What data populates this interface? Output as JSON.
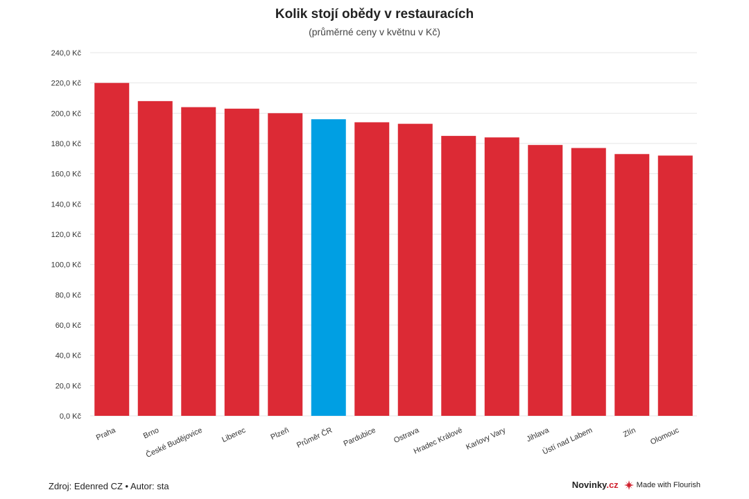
{
  "chart_data": {
    "type": "bar",
    "title": "Kolik stojí obědy v restauracích",
    "subtitle": "(průměrné ceny v květnu v Kč)",
    "categories": [
      "Praha",
      "Brno",
      "České Budějovice",
      "Liberec",
      "Plzeň",
      "Průměr ČR",
      "Pardubice",
      "Ostrava",
      "Hradec Králové",
      "Karlovy Vary",
      "Jihlava",
      "Ústí nad Labem",
      "Zlín",
      "Olomouc"
    ],
    "values": [
      220,
      208,
      204,
      203,
      200,
      196,
      194,
      193,
      185,
      184,
      179,
      177,
      173,
      172
    ],
    "highlight_category": "Průměr ČR",
    "ylim": [
      0,
      240
    ],
    "yticks": [
      0,
      20,
      40,
      60,
      80,
      100,
      120,
      140,
      160,
      180,
      200,
      220,
      240
    ],
    "ytick_labels": [
      "0,0 Kč",
      "20,0 Kč",
      "40,0 Kč",
      "60,0 Kč",
      "80,0 Kč",
      "100,0 Kč",
      "120,0 Kč",
      "140,0 Kč",
      "160,0 Kč",
      "180,0 Kč",
      "200,0 Kč",
      "220,0 Kč",
      "240,0 Kč"
    ],
    "xlabel": "",
    "ylabel": "",
    "grid": true,
    "colors": {
      "bar": "#dc2a35",
      "highlight": "#009fe3",
      "grid": "#e6e6e6"
    }
  },
  "footer": {
    "source": "Zdroj: Edenred CZ • Autor: sta",
    "brand_a": "Novinky",
    "brand_b": ".cz",
    "made_with": "Made with Flourish",
    "flourish_icon": "flourish-icon"
  }
}
